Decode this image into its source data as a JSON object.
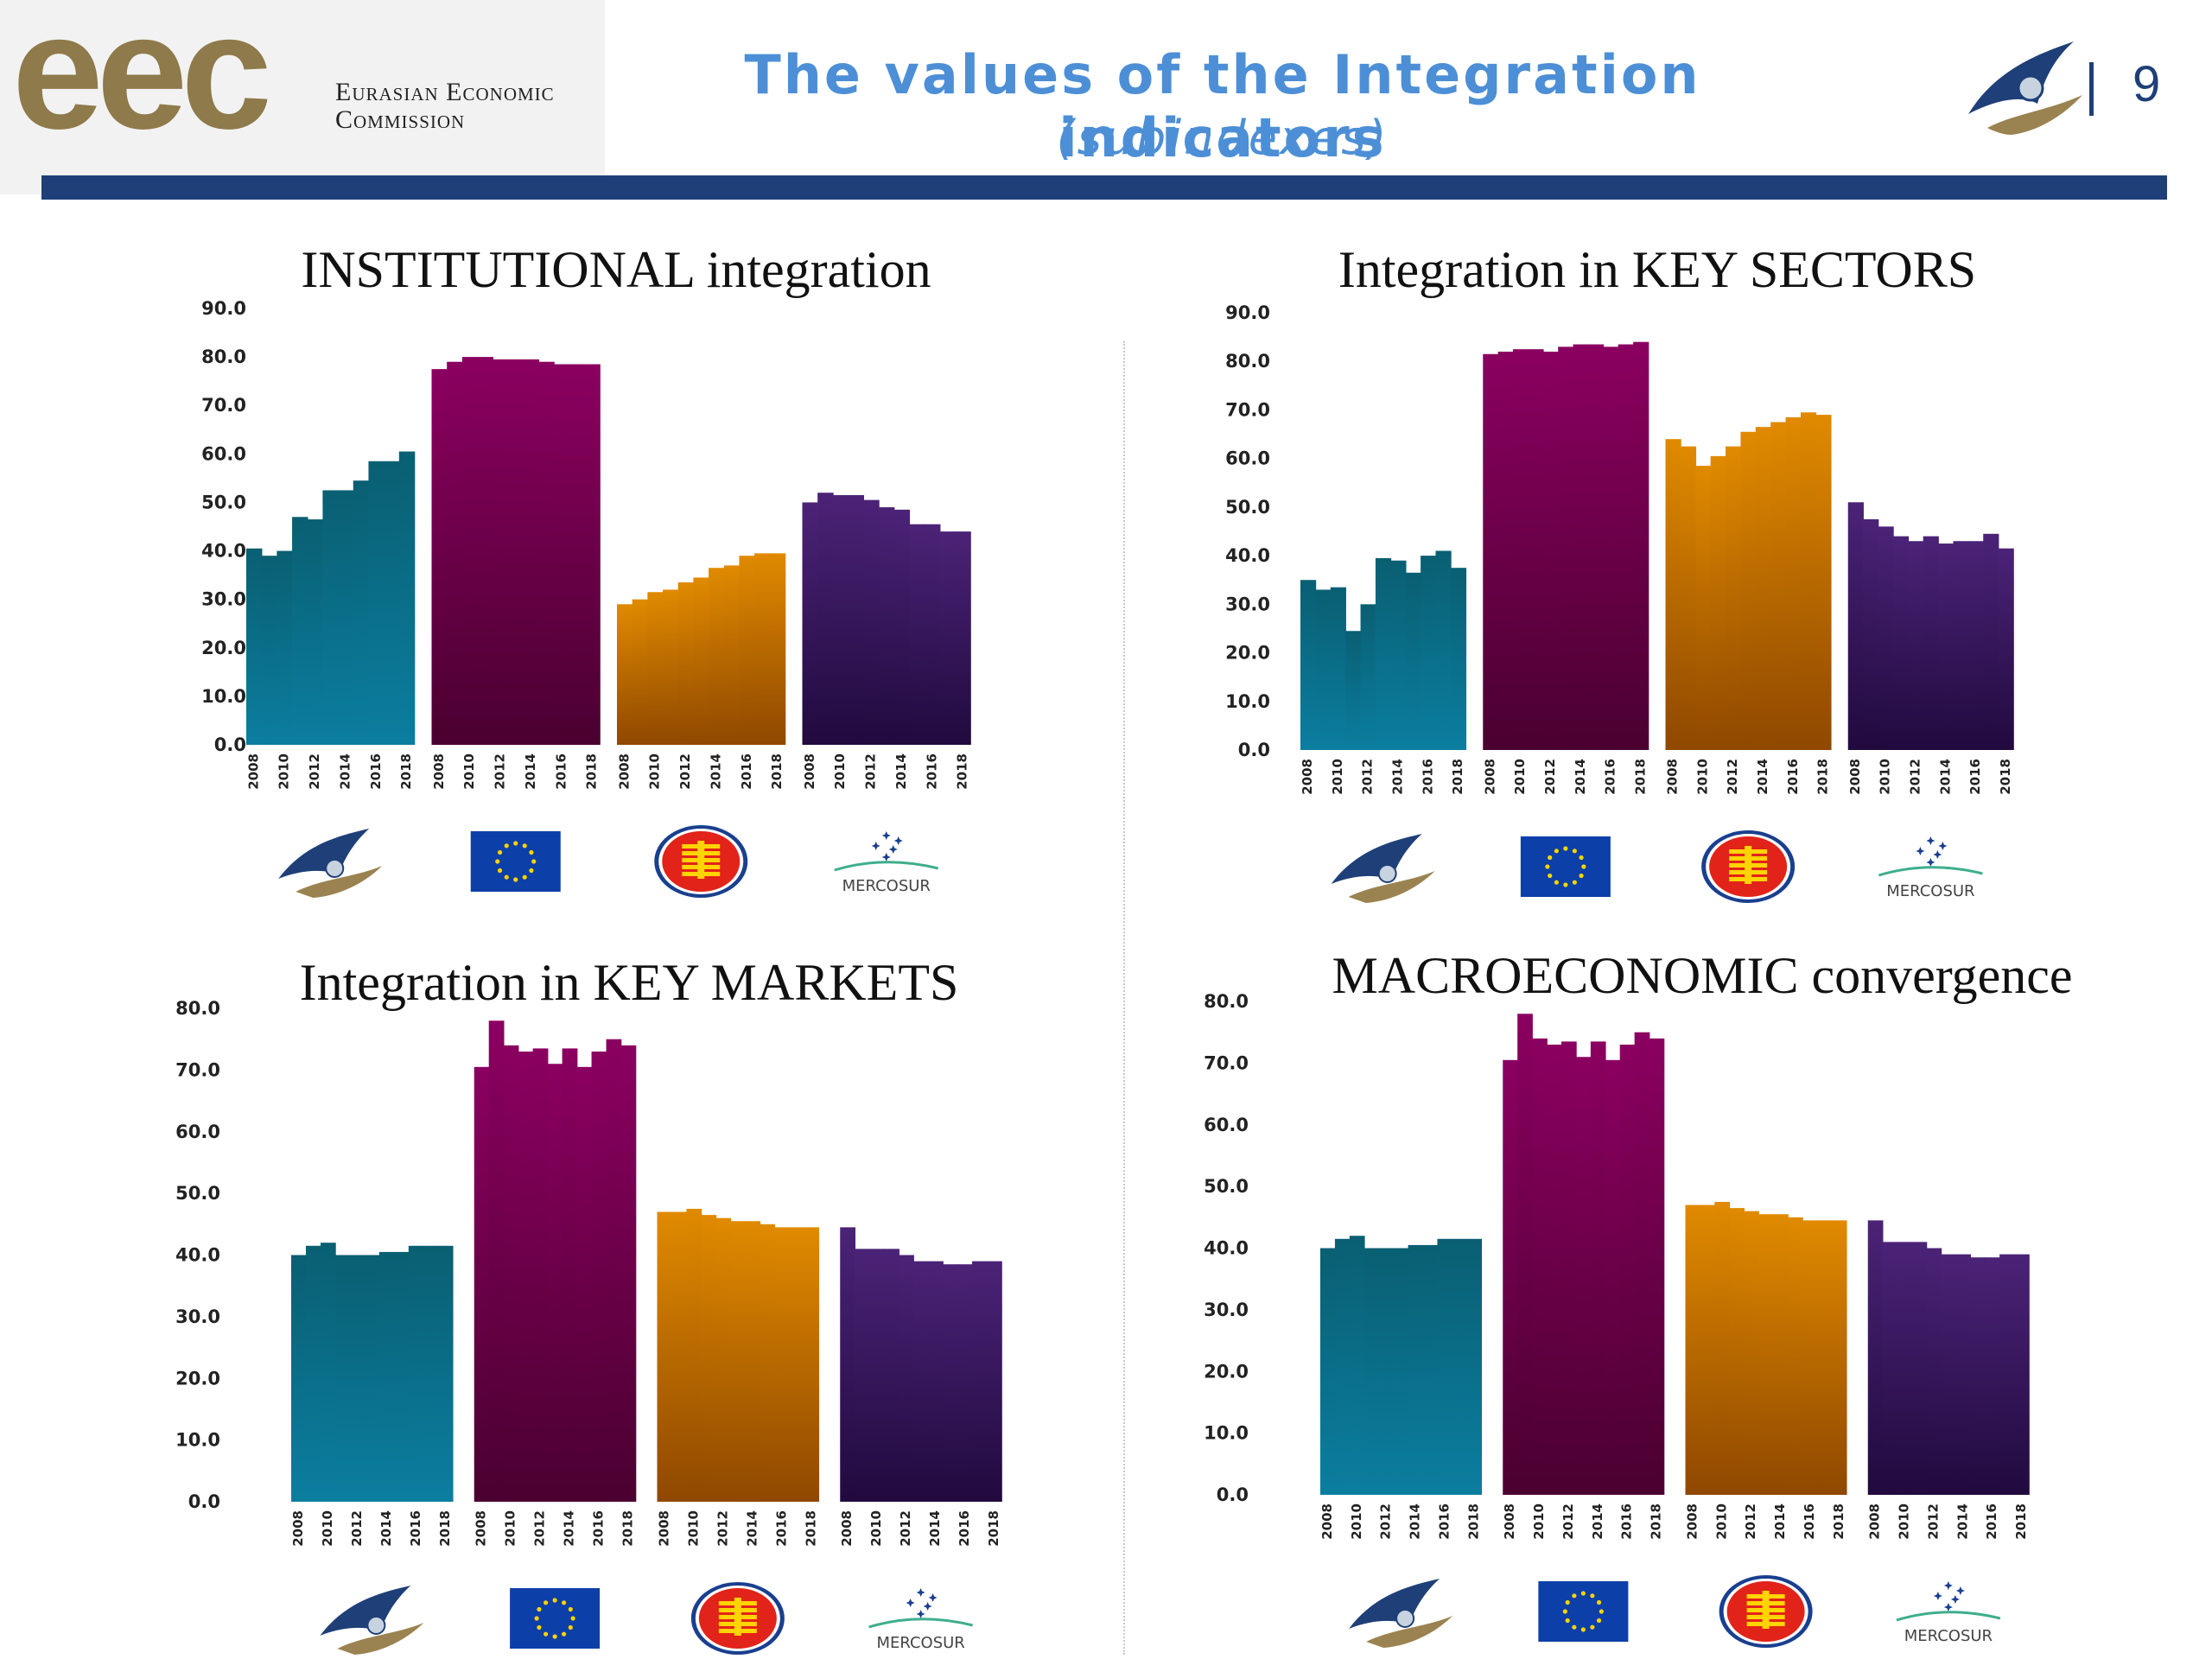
{
  "header": {
    "brand_mark": "eec",
    "brand_line1": "Eurasian Economic",
    "brand_line2": "Commission",
    "title": "The values of the Integration indicators",
    "subtitle": "(subindexes)",
    "page_number": "9",
    "emblem_icon": "eaeu-emblem-icon"
  },
  "colors": {
    "eaeu": [
      "#0b7ea0",
      "#0a5f72"
    ],
    "eu": [
      "#8b0060",
      "#4a0030"
    ],
    "asean": [
      "#e08a00",
      "#8f4800"
    ],
    "mercosur": [
      "#4b2377",
      "#210a3e"
    ],
    "header_bar": "#1f3f78",
    "title": "#4d8fd6"
  },
  "logos": [
    {
      "name": "eaeu-logo",
      "icon": "eaeu-emblem-icon",
      "text": ""
    },
    {
      "name": "eu-flag",
      "icon": "eu-flag-icon",
      "text": ""
    },
    {
      "name": "asean-logo",
      "icon": "asean-emblem-icon",
      "text": ""
    },
    {
      "name": "mercosur-logo",
      "icon": "mercosur-icon",
      "text": "MERCOSUR"
    }
  ],
  "chart_data": [
    {
      "type": "bar",
      "title": "INSTITUTIONAL integration",
      "ylim": [
        0,
        90
      ],
      "yticks": [
        "0.0",
        "10.0",
        "20.0",
        "30.0",
        "40.0",
        "50.0",
        "60.0",
        "70.0",
        "80.0",
        "90.0"
      ],
      "xtick_labels": [
        "2008",
        "2010",
        "2012",
        "2014",
        "2016",
        "2018"
      ],
      "years": [
        2008,
        2009,
        2010,
        2011,
        2012,
        2013,
        2014,
        2015,
        2016,
        2017,
        2018
      ],
      "series": [
        {
          "name": "EAEU",
          "values": [
            40.5,
            39.0,
            40.0,
            47.0,
            46.5,
            52.5,
            52.5,
            54.5,
            58.5,
            58.5,
            60.5
          ]
        },
        {
          "name": "EU",
          "values": [
            77.5,
            79.0,
            80.0,
            80.0,
            79.5,
            79.5,
            79.5,
            79.0,
            78.5,
            78.5,
            78.5
          ]
        },
        {
          "name": "ASEAN",
          "values": [
            29.0,
            30.0,
            31.5,
            32.0,
            33.5,
            34.5,
            36.5,
            37.0,
            39.0,
            39.5,
            39.5
          ]
        },
        {
          "name": "MERCOSUR",
          "values": [
            50.0,
            52.0,
            51.5,
            51.5,
            50.5,
            49.0,
            48.5,
            45.5,
            45.5,
            44.0,
            44.0
          ]
        }
      ]
    },
    {
      "type": "bar",
      "title": "Integration in KEY SECTORS",
      "ylim": [
        0,
        90
      ],
      "yticks": [
        "0.0",
        "10.0",
        "20.0",
        "30.0",
        "40.0",
        "50.0",
        "60.0",
        "70.0",
        "80.0",
        "90.0"
      ],
      "xtick_labels": [
        "2008",
        "2010",
        "2012",
        "2014",
        "2016",
        "2018"
      ],
      "years": [
        2008,
        2009,
        2010,
        2011,
        2012,
        2013,
        2014,
        2015,
        2016,
        2017,
        2018
      ],
      "series": [
        {
          "name": "EAEU",
          "values": [
            35.0,
            33.0,
            33.5,
            24.5,
            30.0,
            39.5,
            39.0,
            36.5,
            40.0,
            41.0,
            37.5
          ]
        },
        {
          "name": "EU",
          "values": [
            81.5,
            82.0,
            82.5,
            82.5,
            82.0,
            83.0,
            83.5,
            83.5,
            83.0,
            83.5,
            84.0
          ]
        },
        {
          "name": "ASEAN",
          "values": [
            64.0,
            62.5,
            58.5,
            60.5,
            62.5,
            65.5,
            66.5,
            67.5,
            68.5,
            69.5,
            69.0
          ]
        },
        {
          "name": "MERCOSUR",
          "values": [
            51.0,
            47.5,
            46.0,
            44.0,
            43.0,
            44.0,
            42.5,
            43.0,
            43.0,
            44.5,
            41.5
          ]
        }
      ]
    },
    {
      "type": "bar",
      "title": "Integration in KEY MARKETS",
      "ylim": [
        0,
        80
      ],
      "yticks": [
        "0.0",
        "10.0",
        "20.0",
        "30.0",
        "40.0",
        "50.0",
        "60.0",
        "70.0",
        "80.0"
      ],
      "xtick_labels": [
        "2008",
        "2010",
        "2012",
        "2014",
        "2016",
        "2018"
      ],
      "years": [
        2008,
        2009,
        2010,
        2011,
        2012,
        2013,
        2014,
        2015,
        2016,
        2017,
        2018
      ],
      "series": [
        {
          "name": "EAEU",
          "values": [
            40.0,
            41.5,
            42.0,
            40.0,
            40.0,
            40.0,
            40.5,
            40.5,
            41.5,
            41.5,
            41.5
          ]
        },
        {
          "name": "EU",
          "values": [
            70.5,
            78.0,
            74.0,
            73.0,
            73.5,
            71.0,
            73.5,
            70.5,
            73.0,
            75.0,
            74.0
          ]
        },
        {
          "name": "ASEAN",
          "values": [
            47.0,
            47.0,
            47.5,
            46.5,
            46.0,
            45.5,
            45.5,
            45.0,
            44.5,
            44.5,
            44.5
          ]
        },
        {
          "name": "MERCOSUR",
          "values": [
            44.5,
            41.0,
            41.0,
            41.0,
            40.0,
            39.0,
            39.0,
            38.5,
            38.5,
            39.0,
            39.0
          ]
        }
      ]
    },
    {
      "type": "bar",
      "title": "MACROECONOMIC convergence",
      "ylim": [
        0,
        80
      ],
      "yticks": [
        "0.0",
        "10.0",
        "20.0",
        "30.0",
        "40.0",
        "50.0",
        "60.0",
        "70.0",
        "80.0"
      ],
      "xtick_labels": [
        "2008",
        "2010",
        "2012",
        "2014",
        "2016",
        "2018"
      ],
      "years": [
        2008,
        2009,
        2010,
        2011,
        2012,
        2013,
        2014,
        2015,
        2016,
        2017,
        2018
      ],
      "series": [
        {
          "name": "EAEU",
          "values": [
            40.0,
            41.5,
            42.0,
            40.0,
            40.0,
            40.0,
            40.5,
            40.5,
            41.5,
            41.5,
            41.5
          ]
        },
        {
          "name": "EU",
          "values": [
            70.5,
            78.0,
            74.0,
            73.0,
            73.5,
            71.0,
            73.5,
            70.5,
            73.0,
            75.0,
            74.0
          ]
        },
        {
          "name": "ASEAN",
          "values": [
            47.0,
            47.0,
            47.5,
            46.5,
            46.0,
            45.5,
            45.5,
            45.0,
            44.5,
            44.5,
            44.5
          ]
        },
        {
          "name": "MERCOSUR",
          "values": [
            44.5,
            41.0,
            41.0,
            41.0,
            40.0,
            39.0,
            39.0,
            38.5,
            38.5,
            39.0,
            39.0
          ]
        }
      ]
    }
  ]
}
